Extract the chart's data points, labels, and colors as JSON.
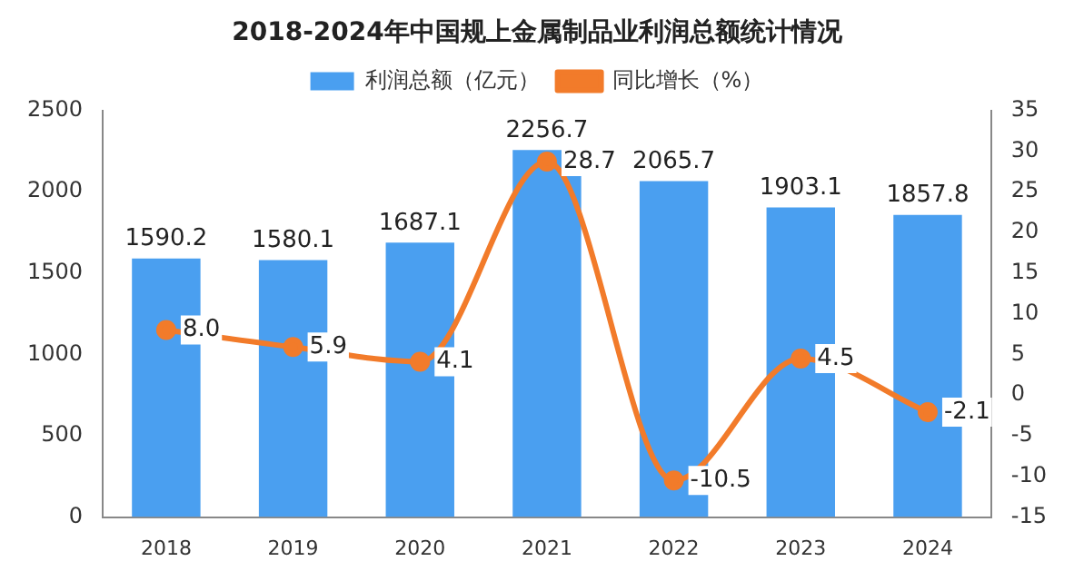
{
  "chart_data": {
    "type": "bar",
    "title": "2018-2024年中国规上金属制品业利润总额统计情况",
    "categories": [
      "2018",
      "2019",
      "2020",
      "2021",
      "2022",
      "2023",
      "2024"
    ],
    "series": [
      {
        "name": "利润总额（亿元）",
        "color": "#4a9ff0",
        "values": [
          1590.2,
          1580.1,
          1687.1,
          2256.7,
          2065.7,
          1903.1,
          1857.8
        ],
        "value_labels": [
          "1590.2",
          "1580.1",
          "1687.1",
          "2256.7",
          "2065.7",
          "1903.1",
          "1857.8"
        ]
      },
      {
        "name": "同比增长（%）",
        "type": "line",
        "axis": "y2",
        "color": "#f27b2a",
        "values": [
          8.0,
          5.9,
          4.1,
          28.7,
          -10.5,
          4.5,
          -2.1
        ],
        "value_labels": [
          "8.0",
          "5.9",
          "4.1",
          "28.7",
          "-10.5",
          "4.5",
          "-2.1"
        ]
      }
    ],
    "ylim": [
      0,
      2500
    ],
    "yticks": [
      0,
      500,
      1000,
      1500,
      2000,
      2500
    ],
    "y2lim": [
      -15,
      35
    ],
    "y2ticks": [
      -15,
      -10,
      -5,
      0,
      5,
      10,
      15,
      20,
      25,
      30,
      35
    ],
    "legend": "top",
    "grid": false,
    "marker": "circle"
  }
}
